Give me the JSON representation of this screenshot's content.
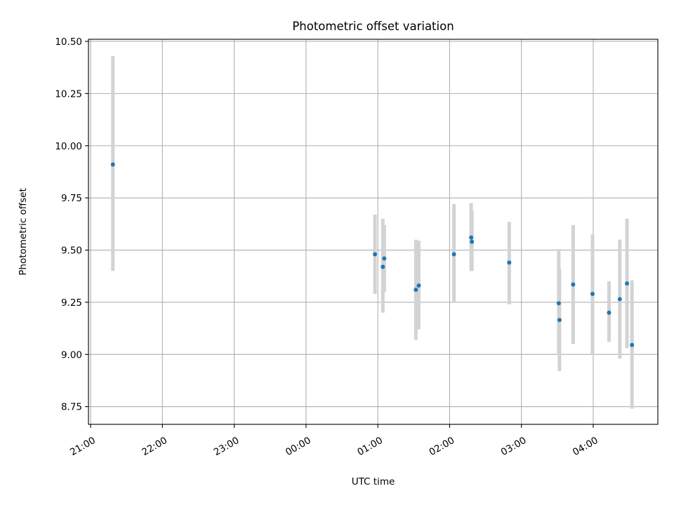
{
  "chart_data": {
    "type": "scatter",
    "title": "Photometric offset variation",
    "xlabel": "UTC time",
    "ylabel": "Photometric offset",
    "x_scale": "time",
    "x_unit": "hours",
    "x_ticks": [
      {
        "value": 21.0,
        "label": "21:00"
      },
      {
        "value": 22.0,
        "label": "22:00"
      },
      {
        "value": 23.0,
        "label": "23:00"
      },
      {
        "value": 24.0,
        "label": "00:00"
      },
      {
        "value": 25.0,
        "label": "01:00"
      },
      {
        "value": 26.0,
        "label": "02:00"
      },
      {
        "value": 27.0,
        "label": "03:00"
      },
      {
        "value": 28.0,
        "label": "04:00"
      }
    ],
    "y_ticks": [
      {
        "value": 8.75,
        "label": "8.75"
      },
      {
        "value": 9.0,
        "label": "9.00"
      },
      {
        "value": 9.25,
        "label": "9.25"
      },
      {
        "value": 9.5,
        "label": "9.50"
      },
      {
        "value": 9.75,
        "label": "9.75"
      },
      {
        "value": 10.0,
        "label": "10.00"
      },
      {
        "value": 10.25,
        "label": "10.25"
      },
      {
        "value": 10.5,
        "label": "10.50"
      }
    ],
    "xlim": [
      20.97,
      28.9
    ],
    "ylim": [
      8.665,
      10.51
    ],
    "grid": true,
    "marker_color": "#1f77b4",
    "errorbar_color": "#d3d3d3",
    "series": [
      {
        "x": [
          21.31,
          24.96,
          25.07,
          25.09,
          25.53,
          25.57,
          26.06,
          26.3,
          26.31,
          26.83,
          27.52,
          27.53,
          27.72,
          27.99,
          28.22,
          28.37,
          28.47,
          28.54
        ],
        "y": [
          9.91,
          9.48,
          9.42,
          9.46,
          9.31,
          9.33,
          9.48,
          9.56,
          9.54,
          9.44,
          9.245,
          9.165,
          9.335,
          9.29,
          9.2,
          9.265,
          9.34,
          9.045
        ],
        "yerr_low": [
          9.4,
          9.29,
          9.2,
          9.3,
          9.07,
          9.12,
          9.25,
          9.4,
          9.4,
          9.24,
          9.0,
          8.92,
          9.05,
          9.0,
          9.06,
          8.98,
          9.03,
          8.74
        ],
        "yerr_high": [
          10.43,
          9.67,
          9.65,
          9.62,
          9.55,
          9.545,
          9.72,
          9.725,
          9.69,
          9.635,
          9.505,
          9.41,
          9.62,
          9.575,
          9.35,
          9.55,
          9.65,
          9.355
        ]
      }
    ]
  }
}
